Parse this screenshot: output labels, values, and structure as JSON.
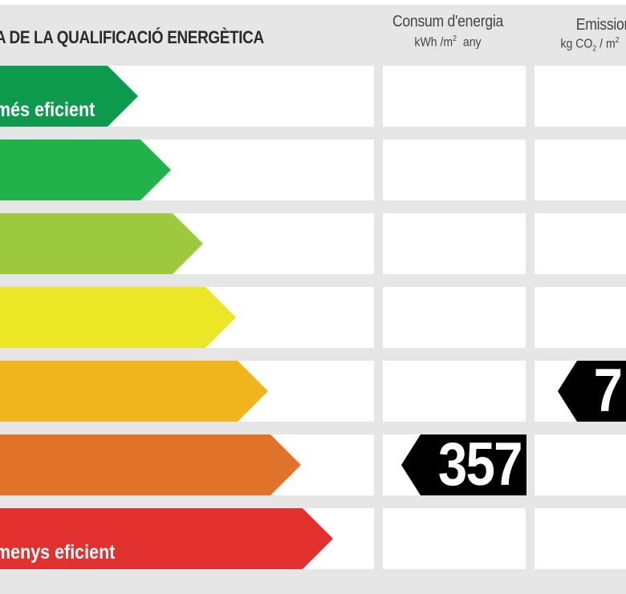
{
  "header": {
    "title": "A DE LA QUALIFICACIÓ ENERGÈTICA",
    "consum": {
      "title": "Consum d'energia",
      "unit_prefix": "kWh /m",
      "unit_exp": "2",
      "unit_suffix": "any"
    },
    "emissions": {
      "title": "Emission",
      "unit_prefix": "kg CO",
      "unit_sub": "2",
      "unit_mid": "/ m",
      "unit_exp": "2"
    }
  },
  "classes": [
    {
      "label": "més eficient",
      "color": "#0e9a4c"
    },
    {
      "label": "",
      "color": "#22b24c"
    },
    {
      "label": "",
      "color": "#9dc93e"
    },
    {
      "label": "",
      "color": "#ebe626"
    },
    {
      "label": "",
      "color": "#f0b51d"
    },
    {
      "label": "",
      "color": "#e07329"
    },
    {
      "label": "menys eficient",
      "color": "#e2302e"
    }
  ],
  "ratings": {
    "consum_value": "357",
    "consum_row": 6,
    "emissions_value": "7",
    "emissions_row": 5
  }
}
